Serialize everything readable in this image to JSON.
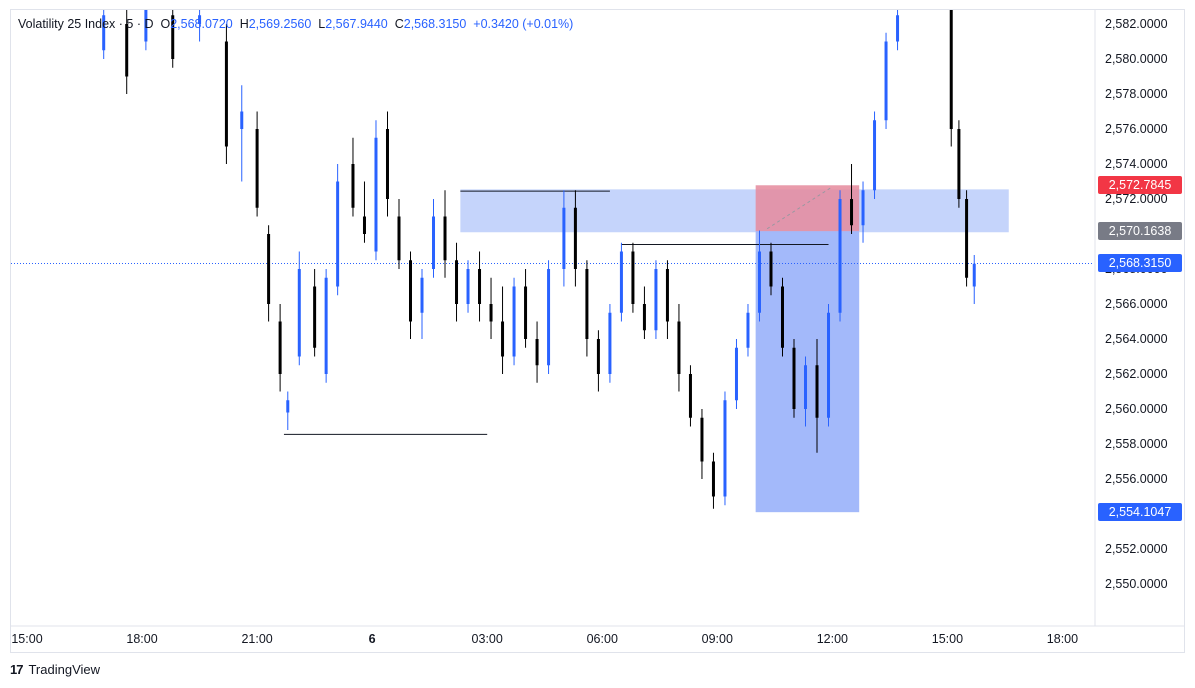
{
  "symbol_bar": {
    "name": "Volatility 25 Index",
    "interval": "5",
    "source": "D",
    "o_label": "O",
    "o_value": "2,568.0720",
    "h_label": "H",
    "h_value": "2,569.2560",
    "l_label": "L",
    "l_value": "2,567.9440",
    "c_label": "C",
    "c_value": "2,568.3150",
    "change": "+0.3420 (+0.01%)"
  },
  "brand": {
    "logo_text": "17",
    "name": "TradingView"
  },
  "price_labels": {
    "stop": "2,572.7845",
    "entry": "2,570.1638",
    "last": "2,568.3150",
    "target": "2,554.1047"
  },
  "colors": {
    "up": "#2962ff",
    "down": "#000000",
    "zone": "#c2d2fb",
    "target_zone": "#9eb5fa",
    "stop_zone": "#e58a9c",
    "stop_label": "#f23645",
    "entry_label": "#787b86",
    "last_label": "#2962ff",
    "grid_text": "#131722"
  },
  "chart_data": {
    "type": "candlestick",
    "ylim": [
      2548.5,
      2583.0
    ],
    "y_ticks": [
      "2,582.0000",
      "2,580.0000",
      "2,578.0000",
      "2,576.0000",
      "2,574.0000",
      "2,572.0000",
      "2,570.0000",
      "2,568.0000",
      "2,566.0000",
      "2,564.0000",
      "2,562.0000",
      "2,560.0000",
      "2,558.0000",
      "2,556.0000",
      "2,554.0000",
      "2,552.0000",
      "2,550.0000"
    ],
    "y_tick_values": [
      2582,
      2580,
      2578,
      2576,
      2574,
      2572,
      2570,
      2568,
      2566,
      2564,
      2562,
      2560,
      2558,
      2556,
      2554,
      2552,
      2550
    ],
    "x_ticks": [
      "15:00",
      "18:00",
      "21:00",
      "6",
      "03:00",
      "06:00",
      "09:00",
      "12:00",
      "15:00",
      "18:00"
    ],
    "x_tick_hours": [
      15,
      18,
      21,
      24,
      27,
      30,
      33,
      36,
      39,
      42
    ],
    "last_price": 2568.315,
    "candles": [
      {
        "t": 17.0,
        "o": 2580.5,
        "h": 2583.0,
        "l": 2580.0,
        "c": 2582.5
      },
      {
        "t": 17.6,
        "o": 2582.0,
        "h": 2583.0,
        "l": 2578.0,
        "c": 2579.0
      },
      {
        "t": 18.1,
        "o": 2581.0,
        "h": 2583.0,
        "l": 2580.5,
        "c": 2582.8
      },
      {
        "t": 18.8,
        "o": 2582.5,
        "h": 2583.0,
        "l": 2579.5,
        "c": 2580.0
      },
      {
        "t": 19.5,
        "o": 2582.0,
        "h": 2583.0,
        "l": 2581.0,
        "c": 2582.5
      },
      {
        "t": 20.2,
        "o": 2581.0,
        "h": 2582.0,
        "l": 2574.0,
        "c": 2575.0
      },
      {
        "t": 20.6,
        "o": 2576.0,
        "h": 2578.5,
        "l": 2573.0,
        "c": 2577.0
      },
      {
        "t": 21.0,
        "o": 2576.0,
        "h": 2577.0,
        "l": 2571.0,
        "c": 2571.5
      },
      {
        "t": 21.3,
        "o": 2570.0,
        "h": 2570.5,
        "l": 2565.0,
        "c": 2566.0
      },
      {
        "t": 21.6,
        "o": 2565.0,
        "h": 2566.0,
        "l": 2561.0,
        "c": 2562.0
      },
      {
        "t": 21.8,
        "o": 2559.8,
        "h": 2561.0,
        "l": 2558.8,
        "c": 2560.5
      },
      {
        "t": 22.1,
        "o": 2563.0,
        "h": 2569.0,
        "l": 2562.5,
        "c": 2568.0
      },
      {
        "t": 22.5,
        "o": 2567.0,
        "h": 2568.0,
        "l": 2563.0,
        "c": 2563.5
      },
      {
        "t": 22.8,
        "o": 2562.0,
        "h": 2568.0,
        "l": 2561.5,
        "c": 2567.5
      },
      {
        "t": 23.1,
        "o": 2567.0,
        "h": 2574.0,
        "l": 2566.5,
        "c": 2573.0
      },
      {
        "t": 23.5,
        "o": 2574.0,
        "h": 2575.5,
        "l": 2571.0,
        "c": 2571.5
      },
      {
        "t": 23.8,
        "o": 2571.0,
        "h": 2573.0,
        "l": 2569.5,
        "c": 2570.0
      },
      {
        "t": 24.1,
        "o": 2569.0,
        "h": 2576.5,
        "l": 2568.5,
        "c": 2575.5
      },
      {
        "t": 24.4,
        "o": 2576.0,
        "h": 2577.0,
        "l": 2571.0,
        "c": 2572.0
      },
      {
        "t": 24.7,
        "o": 2571.0,
        "h": 2572.0,
        "l": 2568.0,
        "c": 2568.5
      },
      {
        "t": 25.0,
        "o": 2568.5,
        "h": 2569.0,
        "l": 2564.0,
        "c": 2565.0
      },
      {
        "t": 25.3,
        "o": 2565.5,
        "h": 2568.0,
        "l": 2564.0,
        "c": 2567.5
      },
      {
        "t": 25.6,
        "o": 2568.0,
        "h": 2572.0,
        "l": 2567.5,
        "c": 2571.0
      },
      {
        "t": 25.9,
        "o": 2571.0,
        "h": 2572.5,
        "l": 2567.5,
        "c": 2568.5
      },
      {
        "t": 26.2,
        "o": 2568.5,
        "h": 2569.5,
        "l": 2565.0,
        "c": 2566.0
      },
      {
        "t": 26.5,
        "o": 2566.0,
        "h": 2568.5,
        "l": 2565.5,
        "c": 2568.0
      },
      {
        "t": 26.8,
        "o": 2568.0,
        "h": 2569.0,
        "l": 2565.0,
        "c": 2566.0
      },
      {
        "t": 27.1,
        "o": 2566.0,
        "h": 2567.5,
        "l": 2564.0,
        "c": 2565.0
      },
      {
        "t": 27.4,
        "o": 2565.0,
        "h": 2567.0,
        "l": 2562.0,
        "c": 2563.0
      },
      {
        "t": 27.7,
        "o": 2563.0,
        "h": 2567.5,
        "l": 2562.5,
        "c": 2567.0
      },
      {
        "t": 28.0,
        "o": 2567.0,
        "h": 2568.0,
        "l": 2563.5,
        "c": 2564.0
      },
      {
        "t": 28.3,
        "o": 2564.0,
        "h": 2565.0,
        "l": 2561.5,
        "c": 2562.5
      },
      {
        "t": 28.6,
        "o": 2562.5,
        "h": 2568.5,
        "l": 2562.0,
        "c": 2568.0
      },
      {
        "t": 29.0,
        "o": 2568.0,
        "h": 2572.5,
        "l": 2567.0,
        "c": 2571.5
      },
      {
        "t": 29.3,
        "o": 2571.5,
        "h": 2572.5,
        "l": 2567.0,
        "c": 2568.0
      },
      {
        "t": 29.6,
        "o": 2568.0,
        "h": 2568.5,
        "l": 2563.0,
        "c": 2564.0
      },
      {
        "t": 29.9,
        "o": 2564.0,
        "h": 2564.5,
        "l": 2561.0,
        "c": 2562.0
      },
      {
        "t": 30.2,
        "o": 2562.0,
        "h": 2566.0,
        "l": 2561.5,
        "c": 2565.5
      },
      {
        "t": 30.5,
        "o": 2565.5,
        "h": 2569.5,
        "l": 2565.0,
        "c": 2569.0
      },
      {
        "t": 30.8,
        "o": 2569.0,
        "h": 2569.5,
        "l": 2565.5,
        "c": 2566.0
      },
      {
        "t": 31.1,
        "o": 2566.0,
        "h": 2567.0,
        "l": 2564.0,
        "c": 2564.5
      },
      {
        "t": 31.4,
        "o": 2564.5,
        "h": 2568.5,
        "l": 2564.0,
        "c": 2568.0
      },
      {
        "t": 31.7,
        "o": 2568.0,
        "h": 2568.5,
        "l": 2564.0,
        "c": 2565.0
      },
      {
        "t": 32.0,
        "o": 2565.0,
        "h": 2566.0,
        "l": 2561.0,
        "c": 2562.0
      },
      {
        "t": 32.3,
        "o": 2562.0,
        "h": 2562.5,
        "l": 2559.0,
        "c": 2559.5
      },
      {
        "t": 32.6,
        "o": 2559.5,
        "h": 2560.0,
        "l": 2556.0,
        "c": 2557.0
      },
      {
        "t": 32.9,
        "o": 2557.0,
        "h": 2557.5,
        "l": 2554.3,
        "c": 2555.0
      },
      {
        "t": 33.2,
        "o": 2555.0,
        "h": 2561.0,
        "l": 2554.5,
        "c": 2560.5
      },
      {
        "t": 33.5,
        "o": 2560.5,
        "h": 2564.0,
        "l": 2560.0,
        "c": 2563.5
      },
      {
        "t": 33.8,
        "o": 2563.5,
        "h": 2566.0,
        "l": 2563.0,
        "c": 2565.5
      },
      {
        "t": 34.1,
        "o": 2565.5,
        "h": 2570.2,
        "l": 2565.0,
        "c": 2569.0
      },
      {
        "t": 34.4,
        "o": 2569.0,
        "h": 2569.5,
        "l": 2566.5,
        "c": 2567.0
      },
      {
        "t": 34.7,
        "o": 2567.0,
        "h": 2567.5,
        "l": 2563.0,
        "c": 2563.5
      },
      {
        "t": 35.0,
        "o": 2563.5,
        "h": 2564.0,
        "l": 2559.5,
        "c": 2560.0
      },
      {
        "t": 35.3,
        "o": 2560.0,
        "h": 2563.0,
        "l": 2559.0,
        "c": 2562.5
      },
      {
        "t": 35.6,
        "o": 2562.5,
        "h": 2564.0,
        "l": 2557.5,
        "c": 2559.5
      },
      {
        "t": 35.9,
        "o": 2559.5,
        "h": 2566.0,
        "l": 2559.0,
        "c": 2565.5
      },
      {
        "t": 36.2,
        "o": 2565.5,
        "h": 2572.5,
        "l": 2565.0,
        "c": 2572.0
      },
      {
        "t": 36.5,
        "o": 2572.0,
        "h": 2574.0,
        "l": 2570.0,
        "c": 2570.5
      },
      {
        "t": 36.8,
        "o": 2570.5,
        "h": 2573.0,
        "l": 2569.5,
        "c": 2572.5
      },
      {
        "t": 37.1,
        "o": 2572.5,
        "h": 2577.0,
        "l": 2572.0,
        "c": 2576.5
      },
      {
        "t": 37.4,
        "o": 2576.5,
        "h": 2581.5,
        "l": 2576.0,
        "c": 2581.0
      },
      {
        "t": 37.7,
        "o": 2581.0,
        "h": 2583.0,
        "l": 2580.5,
        "c": 2582.5
      },
      {
        "t": 39.1,
        "o": 2583.0,
        "h": 2583.0,
        "l": 2575.0,
        "c": 2576.0
      },
      {
        "t": 39.3,
        "o": 2576.0,
        "h": 2576.5,
        "l": 2571.5,
        "c": 2572.0
      },
      {
        "t": 39.5,
        "o": 2572.0,
        "h": 2572.5,
        "l": 2567.0,
        "c": 2567.5
      },
      {
        "t": 39.7,
        "o": 2567.0,
        "h": 2568.8,
        "l": 2566.0,
        "c": 2568.3
      }
    ],
    "annotations": {
      "supply_zone": {
        "t0": 26.3,
        "t1": 40.6,
        "y0": 2570.1,
        "y1": 2572.55
      },
      "target_zone": {
        "t0": 34.0,
        "t1": 36.7,
        "y0": 2554.1047,
        "y1": 2570.1638
      },
      "stop_zone": {
        "t0": 34.0,
        "t1": 36.7,
        "y0": 2570.1638,
        "y1": 2572.7845
      },
      "hlines": [
        {
          "t0": 21.7,
          "t1": 27.0,
          "y": 2558.55
        },
        {
          "t0": 26.3,
          "t1": 30.2,
          "y": 2572.45
        },
        {
          "t0": 30.5,
          "t1": 35.9,
          "y": 2569.4
        }
      ],
      "dashed_line": {
        "t0": 34.3,
        "t1": 36.0,
        "y0": 2570.3,
        "y1": 2572.7
      }
    }
  }
}
